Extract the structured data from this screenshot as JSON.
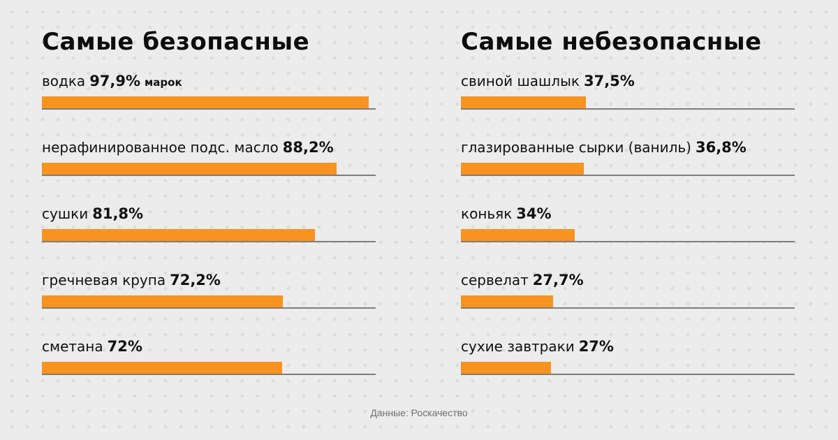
{
  "chart_data": [
    {
      "type": "bar",
      "title": "Самые безопасные",
      "categories": [
        "водка",
        "нерафинированное подс. масло",
        "сушки",
        "гречневая крупа",
        "сметана"
      ],
      "values": [
        97.9,
        88.2,
        81.8,
        72.2,
        72
      ],
      "value_labels": [
        "97,9%",
        "88,2%",
        "81,8%",
        "72,2%",
        "72%"
      ],
      "value_suffixes": [
        "марок",
        "",
        "",
        "",
        ""
      ],
      "xlim": [
        0,
        100
      ],
      "orientation": "horizontal",
      "color": "#f7931e",
      "grid": false
    },
    {
      "type": "bar",
      "title": "Самые небезопасные",
      "categories": [
        "свиной шашлык",
        "глазированные сырки (ваниль)",
        "коньяк",
        "сервелат",
        "сухие завтраки"
      ],
      "values": [
        37.5,
        36.8,
        34,
        27.7,
        27
      ],
      "value_labels": [
        "37,5%",
        "36,8%",
        "34%",
        "27,7%",
        "27%"
      ],
      "value_suffixes": [
        "",
        "",
        "",
        "",
        ""
      ],
      "xlim": [
        0,
        100
      ],
      "orientation": "horizontal",
      "color": "#f7931e",
      "grid": false
    }
  ],
  "source": "Данные: Роскачество"
}
